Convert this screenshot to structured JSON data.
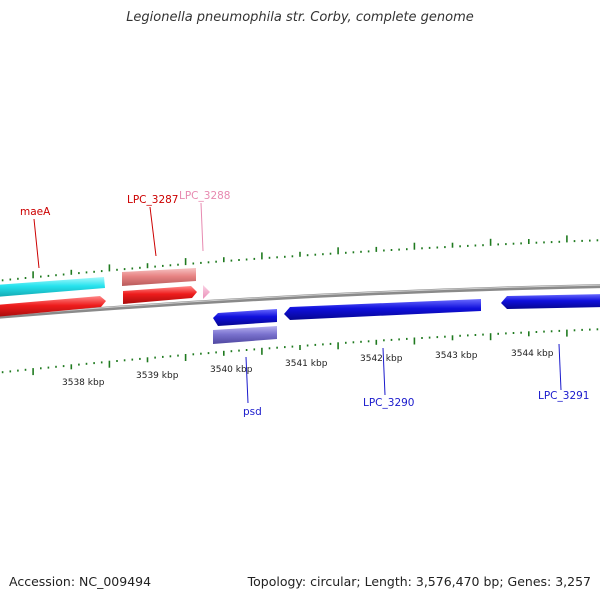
{
  "title": "Legionella pneumophila str. Corby, complete genome",
  "footer": {
    "accession": "Accession: NC_009494",
    "summary": "Topology: circular; Length: 3,576,470 bp; Genes: 3,257"
  },
  "colors": {
    "backbone": "#8a8a8a",
    "tick": "#1f7a1f",
    "cyan_track": "#27e3ee",
    "red_track": "#ee1c1c",
    "salmon_track": "#e88484",
    "pink_gene": "#f4a6c9",
    "blue_gene": "#1010dd",
    "purple_track": "#7b73cf",
    "label_red": "#cc0000",
    "label_pink": "#e78ab0",
    "label_blue": "#1a1acc"
  },
  "scale": {
    "labels": [
      "3538 kbp",
      "3539 kbp",
      "3540 kbp",
      "3541 kbp",
      "3542 kbp",
      "3543 kbp",
      "3544 kbp"
    ]
  },
  "genes": {
    "maeA": "maeA",
    "lpc3287": "LPC_3287",
    "lpc3288": "LPC_3288",
    "psd": "psd",
    "lpc3290": "LPC_3290",
    "lpc3291": "LPC_3291"
  }
}
